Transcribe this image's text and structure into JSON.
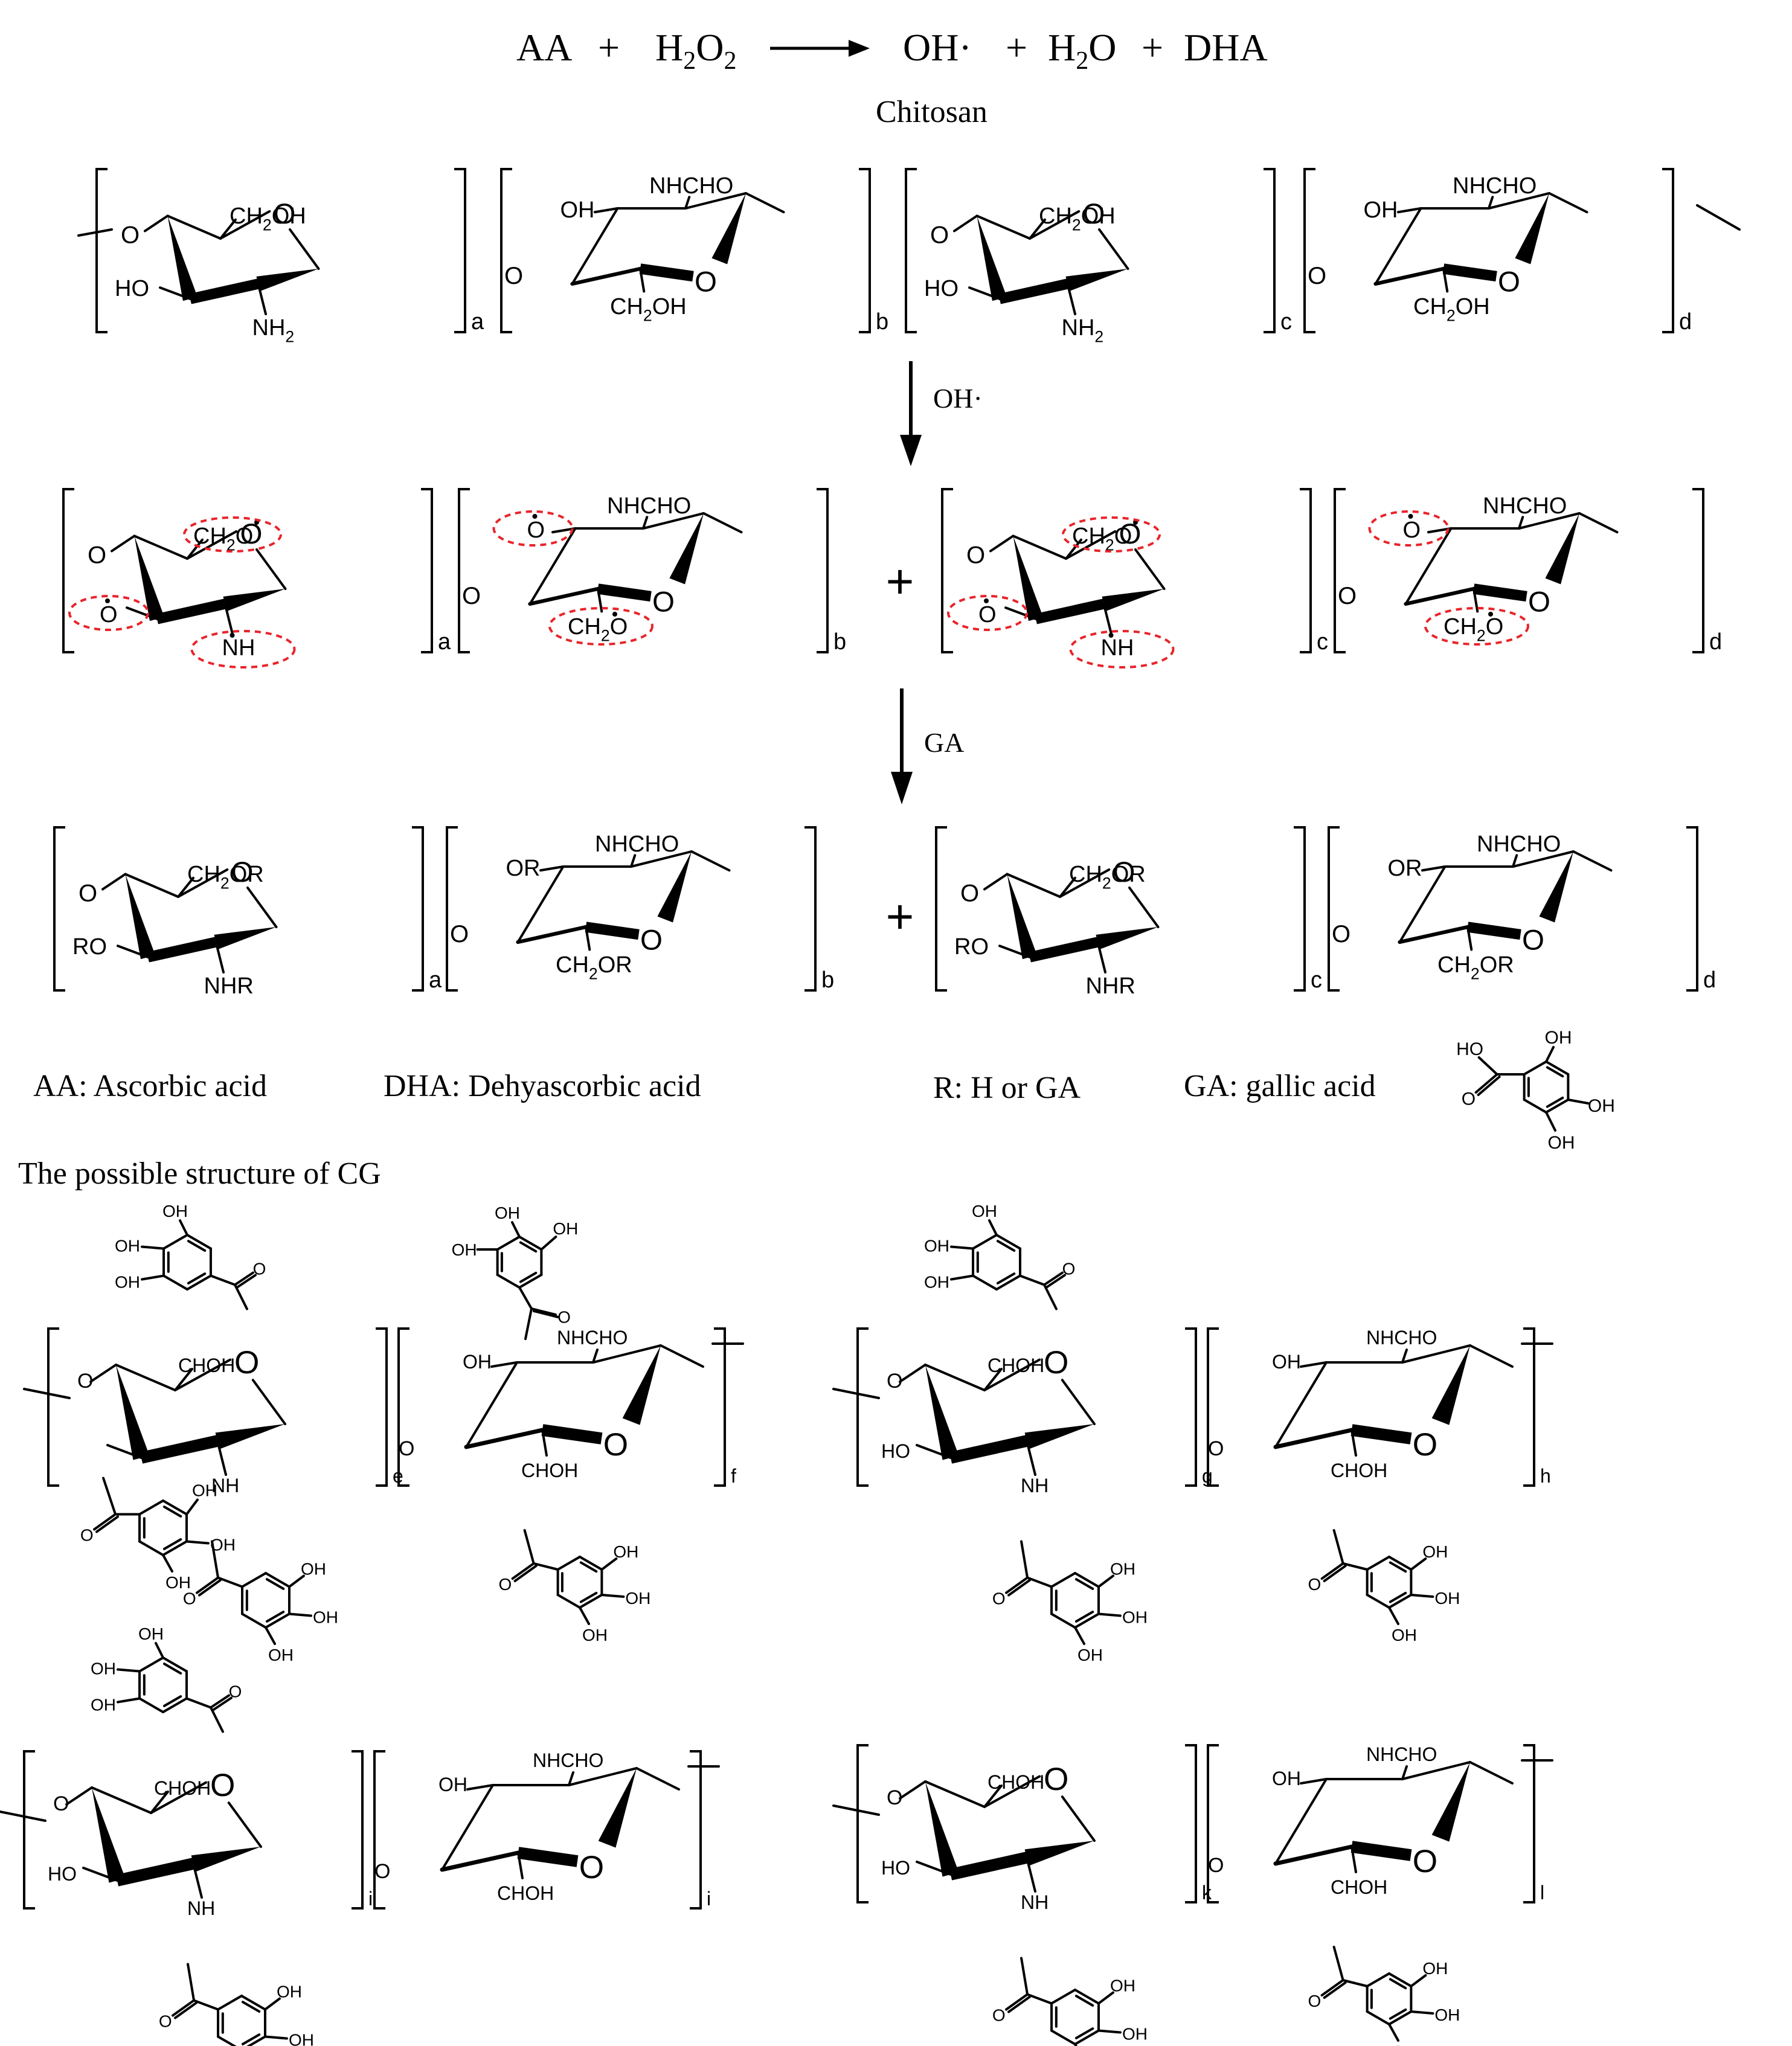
{
  "equation": {
    "reactant1": "AA",
    "plus": "+",
    "reactant2": "H2O2",
    "product1": "OH·",
    "product2": "H2O",
    "product3": "DHA"
  },
  "polymer_label": "Chitosan",
  "arrow1_label": "OH·",
  "arrow2_label": "GA",
  "atoms": {
    "ring_O": "O",
    "link_O": "O",
    "ch2oh": "CH2OH",
    "ch2o_radical": "CH2O",
    "o_radical": "O",
    "nh_radical": "NH",
    "oh": "OH",
    "ho": "HO",
    "nh2": "NH2",
    "nhcho": "NHCHO",
    "ch2or": "CH2OR",
    "or": "OR",
    "ro": "RO",
    "nhr": "NHR",
    "chooh": "CHOH",
    "nh": "NH"
  },
  "subscripts": {
    "row1": [
      "a",
      "b",
      "c",
      "d"
    ],
    "row2": [
      "a",
      "b",
      "c",
      "d"
    ],
    "row3": [
      "a",
      "b",
      "c",
      "d"
    ],
    "cg1": [
      "e",
      "f"
    ],
    "cg2": [
      "g",
      "h"
    ],
    "cg3": [
      "i",
      "i"
    ],
    "cg4": [
      "k",
      "l"
    ]
  },
  "legend": {
    "aa": "AA: Ascorbic acid",
    "dha": "DHA: Dehyascorbic acid",
    "r": "R: H or GA",
    "ga": "GA: gallic acid"
  },
  "section_title": "The possible structure of CG",
  "colors": {
    "line": "#000000",
    "highlight": "#e8242a"
  }
}
